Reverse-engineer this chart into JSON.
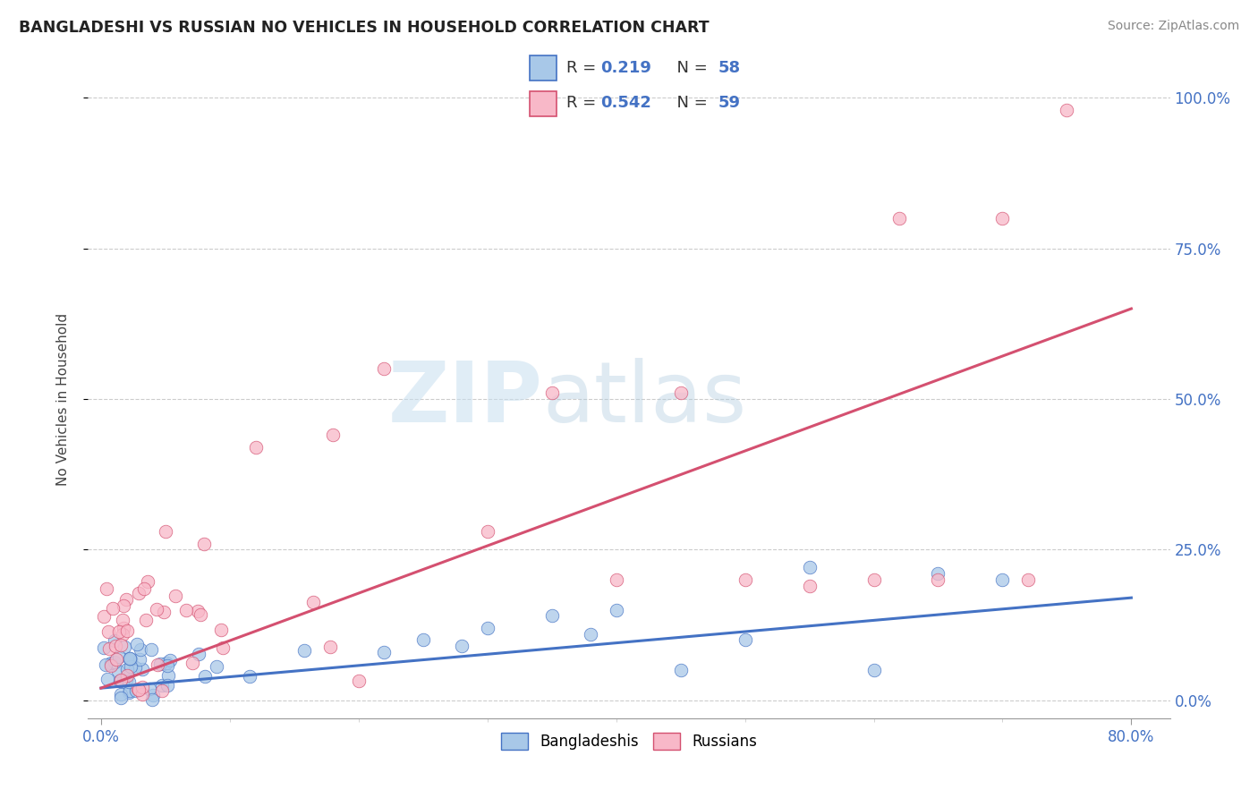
{
  "title": "BANGLADESHI VS RUSSIAN NO VEHICLES IN HOUSEHOLD CORRELATION CHART",
  "source": "Source: ZipAtlas.com",
  "ylabel": "No Vehicles in Household",
  "ytick_labels": [
    "0.0%",
    "25.0%",
    "50.0%",
    "75.0%",
    "100.0%"
  ],
  "ytick_vals": [
    0,
    25,
    50,
    75,
    100
  ],
  "xlim": [
    -1,
    83
  ],
  "ylim": [
    -3,
    103
  ],
  "legend_r_blue": "0.219",
  "legend_n_blue": "58",
  "legend_r_pink": "0.542",
  "legend_n_pink": "59",
  "color_blue": "#a8c8e8",
  "color_pink": "#f8b8c8",
  "line_blue": "#4472c4",
  "line_pink": "#d45070",
  "watermark_zip": "ZIP",
  "watermark_atlas": "atlas",
  "blue_line_start_y": 2.0,
  "blue_line_end_y": 17.0,
  "pink_line_start_y": 2.0,
  "pink_line_end_y": 65.0
}
